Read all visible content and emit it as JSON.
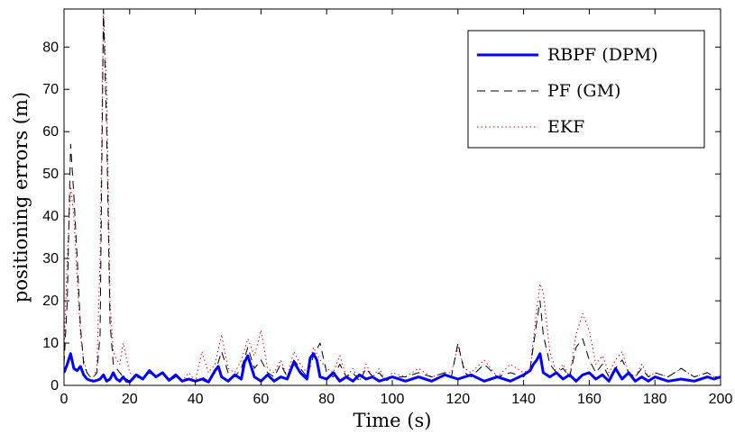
{
  "chart_data": {
    "type": "line",
    "title": "",
    "xlabel": "Time (s)",
    "ylabel": "positioning errors (m)",
    "xlim": [
      0,
      200
    ],
    "ylim": [
      0,
      89
    ],
    "xticks": [
      0,
      20,
      40,
      60,
      80,
      100,
      120,
      140,
      160,
      180,
      200
    ],
    "yticks": [
      0,
      10,
      20,
      30,
      40,
      50,
      60,
      70,
      80
    ],
    "grid": false,
    "legend_position": "top-right",
    "series": [
      {
        "name": "RBPF (DPM)",
        "color": "#0000ff",
        "style": "solid",
        "x": [
          0,
          1,
          2,
          3,
          4,
          5,
          6,
          7,
          8,
          9,
          10,
          11,
          12,
          13,
          14,
          15,
          16,
          17,
          18,
          19,
          20,
          22,
          24,
          26,
          28,
          30,
          32,
          34,
          36,
          38,
          40,
          42,
          44,
          46,
          47,
          48,
          50,
          52,
          54,
          55,
          56,
          58,
          60,
          62,
          64,
          66,
          68,
          70,
          72,
          74,
          75,
          76,
          77,
          78,
          80,
          82,
          84,
          86,
          88,
          90,
          92,
          94,
          96,
          98,
          100,
          104,
          108,
          112,
          116,
          120,
          124,
          128,
          132,
          136,
          140,
          142,
          143,
          144,
          145,
          146,
          148,
          150,
          152,
          154,
          156,
          158,
          160,
          162,
          164,
          166,
          168,
          170,
          172,
          174,
          176,
          178,
          180,
          184,
          188,
          192,
          196,
          198,
          200
        ],
        "y": [
          3.0,
          5.0,
          7.5,
          4.0,
          3.5,
          4.5,
          2.5,
          1.5,
          1.2,
          1.0,
          1.2,
          1.5,
          2.5,
          1.0,
          1.5,
          3.0,
          1.5,
          1.0,
          2.0,
          1.0,
          0.8,
          2.5,
          1.5,
          3.5,
          2.0,
          3.0,
          1.2,
          2.5,
          1.0,
          1.5,
          1.0,
          1.5,
          0.8,
          3.5,
          4.5,
          2.0,
          1.0,
          2.5,
          1.5,
          5.5,
          7.0,
          2.0,
          1.0,
          2.5,
          1.0,
          2.0,
          1.5,
          5.5,
          3.0,
          1.5,
          6.5,
          7.5,
          6.0,
          2.0,
          1.5,
          3.0,
          1.0,
          2.0,
          1.0,
          2.5,
          1.5,
          2.0,
          1.0,
          1.5,
          2.0,
          1.0,
          2.0,
          1.0,
          2.5,
          1.5,
          2.5,
          1.0,
          2.0,
          1.0,
          2.5,
          3.5,
          5.0,
          6.0,
          7.5,
          3.0,
          2.0,
          3.0,
          1.5,
          2.5,
          1.0,
          2.5,
          3.0,
          1.5,
          2.5,
          1.0,
          4.0,
          1.5,
          3.0,
          1.0,
          2.0,
          1.0,
          2.0,
          1.0,
          1.5,
          1.0,
          2.0,
          1.5,
          2.0
        ]
      },
      {
        "name": "PF (GM)",
        "color": "#000000",
        "style": "dashed",
        "x": [
          0,
          1,
          2,
          3,
          4,
          5,
          6,
          7,
          8,
          9,
          10,
          11,
          12,
          13,
          14,
          15,
          16,
          17,
          18,
          20,
          22,
          24,
          26,
          28,
          30,
          32,
          34,
          36,
          38,
          40,
          42,
          44,
          46,
          48,
          50,
          52,
          54,
          56,
          58,
          60,
          62,
          64,
          66,
          68,
          70,
          72,
          74,
          76,
          78,
          80,
          82,
          84,
          86,
          88,
          90,
          92,
          94,
          96,
          98,
          100,
          104,
          108,
          112,
          116,
          118,
          120,
          122,
          124,
          128,
          132,
          136,
          140,
          142,
          144,
          145,
          146,
          148,
          150,
          152,
          154,
          156,
          158,
          160,
          162,
          164,
          166,
          168,
          170,
          172,
          174,
          176,
          178,
          180,
          184,
          188,
          192,
          196,
          198,
          200
        ],
        "y": [
          5,
          20,
          57,
          45,
          30,
          14,
          5,
          3,
          2,
          2,
          3,
          12,
          89,
          60,
          15,
          5,
          4,
          3,
          2,
          1,
          2,
          1.5,
          3,
          2,
          3,
          1,
          2,
          1,
          2,
          1,
          2,
          1,
          3,
          8,
          3,
          2,
          4,
          9,
          4,
          6,
          3,
          2,
          5,
          2,
          6,
          4,
          2,
          7,
          10,
          3,
          2,
          5,
          2,
          3,
          1,
          4,
          2,
          3,
          1,
          2,
          2,
          3,
          2,
          3,
          2,
          10,
          3,
          2,
          5,
          2,
          3,
          2,
          4,
          15,
          20,
          12,
          5,
          3,
          4,
          2,
          9,
          11,
          6,
          3,
          5,
          2,
          4,
          6,
          3,
          2,
          4,
          2,
          3,
          2,
          4,
          2,
          3,
          2,
          2
        ]
      },
      {
        "name": "EKF",
        "color": "#ff0000",
        "style": "dotted",
        "x": [
          0,
          1,
          2,
          3,
          4,
          5,
          6,
          7,
          8,
          9,
          10,
          11,
          12,
          13,
          14,
          15,
          16,
          17,
          18,
          20,
          22,
          24,
          26,
          28,
          30,
          32,
          34,
          36,
          38,
          40,
          42,
          44,
          46,
          48,
          50,
          52,
          54,
          56,
          58,
          60,
          62,
          64,
          66,
          68,
          70,
          72,
          74,
          76,
          78,
          80,
          82,
          84,
          86,
          88,
          90,
          92,
          94,
          96,
          98,
          100,
          104,
          108,
          112,
          116,
          118,
          120,
          122,
          124,
          128,
          132,
          136,
          140,
          142,
          144,
          145,
          146,
          148,
          150,
          152,
          154,
          156,
          158,
          160,
          162,
          164,
          166,
          168,
          170,
          172,
          174,
          176,
          178,
          180,
          184,
          188,
          192,
          196,
          198,
          200
        ],
        "y": [
          8,
          30,
          47,
          40,
          25,
          12,
          6,
          3,
          2,
          2,
          4,
          30,
          89,
          70,
          20,
          8,
          6,
          5,
          10,
          3,
          2,
          1.5,
          3,
          2,
          3,
          1,
          2,
          1,
          3,
          1,
          8,
          3,
          5,
          12,
          4,
          3,
          6,
          11,
          7,
          13,
          4,
          3,
          6,
          2,
          8,
          5,
          3,
          9,
          6,
          4,
          3,
          7,
          2,
          4,
          1,
          5,
          2,
          4,
          1,
          3,
          2,
          4,
          2,
          3,
          3,
          9,
          4,
          3,
          6,
          2,
          5,
          3,
          4,
          18,
          24,
          22,
          8,
          3,
          5,
          2,
          12,
          17,
          13,
          5,
          7,
          3,
          6,
          8,
          3,
          2,
          5,
          2,
          3,
          2,
          4,
          2,
          3,
          2,
          2
        ]
      }
    ]
  }
}
